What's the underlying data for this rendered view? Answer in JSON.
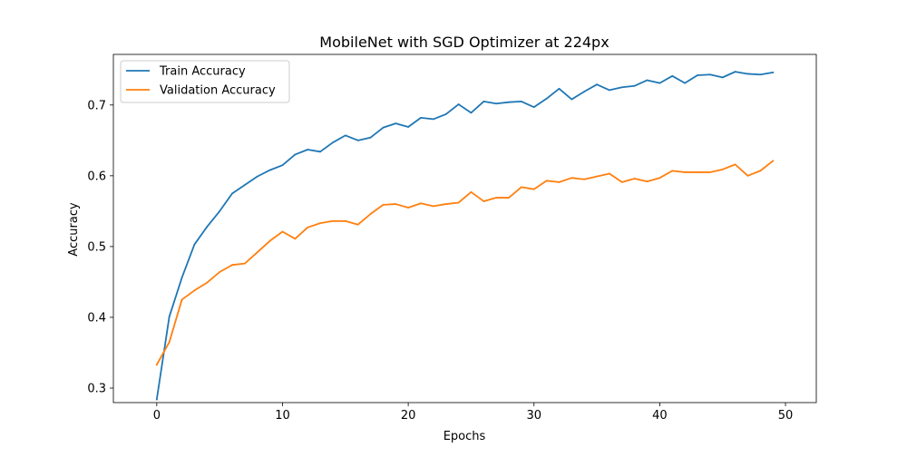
{
  "chart_data": {
    "type": "line",
    "title": "MobileNet with SGD Optimizer at 224px",
    "xlabel": "Epochs",
    "ylabel": "Accuracy",
    "xlim": [
      -3.45,
      52.45
    ],
    "ylim": [
      0.2795,
      0.7715
    ],
    "xticks": [
      0,
      10,
      20,
      30,
      40,
      50
    ],
    "yticks": [
      0.3,
      0.4,
      0.5,
      0.6,
      0.7
    ],
    "xtick_labels": [
      "0",
      "10",
      "20",
      "30",
      "40",
      "50"
    ],
    "ytick_labels": [
      "0.3",
      "0.4",
      "0.5",
      "0.6",
      "0.7"
    ],
    "grid": false,
    "legend_position": "upper-left",
    "x": [
      0,
      1,
      2,
      3,
      4,
      5,
      6,
      7,
      8,
      9,
      10,
      11,
      12,
      13,
      14,
      15,
      16,
      17,
      18,
      19,
      20,
      21,
      22,
      23,
      24,
      25,
      26,
      27,
      28,
      29,
      30,
      31,
      32,
      33,
      34,
      35,
      36,
      37,
      38,
      39,
      40,
      41,
      42,
      43,
      44,
      45,
      46,
      47,
      48,
      49
    ],
    "series": [
      {
        "name": "Train Accuracy",
        "color": "#1f77b4",
        "values": [
          0.284,
          0.401,
          0.456,
          0.503,
          0.528,
          0.55,
          0.575,
          0.587,
          0.599,
          0.608,
          0.615,
          0.63,
          0.637,
          0.634,
          0.647,
          0.657,
          0.65,
          0.654,
          0.668,
          0.674,
          0.669,
          0.682,
          0.68,
          0.687,
          0.701,
          0.689,
          0.705,
          0.702,
          0.704,
          0.705,
          0.697,
          0.709,
          0.723,
          0.708,
          0.719,
          0.729,
          0.721,
          0.725,
          0.727,
          0.735,
          0.731,
          0.741,
          0.731,
          0.742,
          0.743,
          0.739,
          0.747,
          0.744,
          0.743,
          0.746
        ]
      },
      {
        "name": "Validation Accuracy",
        "color": "#ff7f0e",
        "values": [
          0.333,
          0.365,
          0.425,
          0.438,
          0.449,
          0.464,
          0.474,
          0.476,
          0.492,
          0.508,
          0.521,
          0.511,
          0.527,
          0.533,
          0.536,
          0.536,
          0.531,
          0.546,
          0.559,
          0.56,
          0.555,
          0.561,
          0.557,
          0.56,
          0.562,
          0.577,
          0.564,
          0.569,
          0.569,
          0.584,
          0.581,
          0.593,
          0.591,
          0.597,
          0.595,
          0.599,
          0.603,
          0.591,
          0.596,
          0.592,
          0.597,
          0.607,
          0.605,
          0.605,
          0.605,
          0.609,
          0.616,
          0.6,
          0.607,
          0.621
        ]
      }
    ]
  }
}
